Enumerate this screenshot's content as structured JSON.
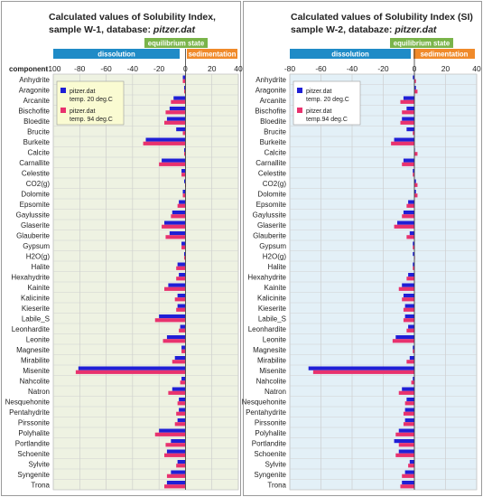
{
  "chart_data": [
    {
      "type": "bar",
      "title": "Calculated values of Solubility Index,",
      "title_line2_prefix": "sample W-1, database: ",
      "title_line2_italic": "pitzer.dat",
      "ylabel": "component",
      "xlim": [
        -100,
        40
      ],
      "xticks": [
        -100,
        -80,
        -60,
        -40,
        -20,
        0,
        20,
        40
      ],
      "plot_bg": "#eef2e2",
      "legend_placement": "top-left",
      "zone_labels": {
        "dissolution": "dissolution",
        "equilibrium": "equilibrium state",
        "sedimentation": "sedimentation"
      },
      "categories": [
        "Anhydrite",
        "Aragonite",
        "Arcanite",
        "Bischofite",
        "Bloedite",
        "Brucite",
        "Burkeite",
        "Calcite",
        "Carnallite",
        "Celestite",
        "CO2(g)",
        "Dolomite",
        "Epsomite",
        "Gaylussite",
        "Glaserite",
        "Glauberite",
        "Gypsum",
        "H2O(g)",
        "Halite",
        "Hexahydrite",
        "Kainite",
        "Kalicinite",
        "Kieserite",
        "Labile_S",
        "Leonhardite",
        "Leonite",
        "Magnesite",
        "Mirabilite",
        "Misenite",
        "Nahcolite",
        "Natron",
        "Nesquehonite",
        "Pentahydrite",
        "Pirssonite",
        "Polyhalite",
        "Portlandite",
        "Schoenite",
        "Sylvite",
        "Syngenite",
        "Trona"
      ],
      "series": [
        {
          "name": "pitzer.dat",
          "name_line2": "temp. 20 deg.C",
          "color": "#1f1fd6",
          "values": [
            -2,
            -1,
            -9,
            -12,
            -14,
            -7,
            -30,
            -1,
            -18,
            -3,
            -1,
            -2,
            -5,
            -10,
            -16,
            -12,
            -3,
            -1,
            -6,
            -5,
            -13,
            -6,
            -6,
            -20,
            -4,
            -14,
            -3,
            -8,
            -81,
            -3,
            -10,
            -5,
            -5,
            -6,
            -20,
            -11,
            -14,
            -6,
            -11,
            -14
          ]
        },
        {
          "name": "pitzer.dat",
          "name_line2": "temp. 94 deg.C",
          "color": "#e8326e",
          "values": [
            -2,
            -1,
            -11,
            -15,
            -16,
            -2,
            -32,
            -1,
            -20,
            -3,
            0,
            -2,
            -6,
            -11,
            -18,
            -15,
            -3,
            -1,
            -7,
            -7,
            -16,
            -8,
            -7,
            -23,
            -5,
            -17,
            -3,
            -10,
            -83,
            -4,
            -13,
            -6,
            -7,
            -8,
            -23,
            -15,
            -16,
            -7,
            -14,
            -16
          ]
        }
      ]
    },
    {
      "type": "bar",
      "title": "Calculated values of Solubility Index (SI)",
      "title_line2_prefix": "sample W-2, databaze: ",
      "title_line2_italic": "pitzer.dat",
      "ylabel": "",
      "xlim": [
        -80,
        40
      ],
      "xticks": [
        -80,
        -60,
        -40,
        -20,
        0,
        20,
        40
      ],
      "plot_bg": "#e3f0f7",
      "legend_placement": "top-left",
      "zone_labels": {
        "dissolution": "dissolution",
        "equilibrium": "equilibrium state",
        "sedimentation": "sedimentation"
      },
      "categories": [
        "Anhydrite",
        "Aragonite",
        "Arcanite",
        "Bischofite",
        "Bloedite",
        "Brucite",
        "Burkeite",
        "Calcite",
        "Carnallite",
        "Celestite",
        "CO2(g)",
        "Dolomite",
        "Epsomite",
        "Gaylussite",
        "Glaserite",
        "Glauberite",
        "Gypsum",
        "H2O(g)",
        "Halite",
        "Hexahydrite",
        "Kainite",
        "Kalicinite",
        "Kieserite",
        "Labile_S",
        "Leonhardite",
        "Leonite",
        "Magnesite",
        "Mirabilite",
        "Misenite",
        "Nahcolite",
        "Natron",
        "Nesquehonite",
        "Pentahydrite",
        "Pirssonite",
        "Polyhalite",
        "Portlandite",
        "Schoenite",
        "Sylvite",
        "Syngenite",
        "Trona"
      ],
      "series": [
        {
          "name": "pitzer.dat",
          "name_line2": "temp. 20 deg.C",
          "color": "#1f1fd6",
          "values": [
            -1,
            1,
            -7,
            -5,
            -8,
            -5,
            -13,
            0,
            -7,
            -1,
            1,
            1,
            -4,
            -7,
            -11,
            -3,
            -1,
            -1,
            -1,
            -4,
            -8,
            -7,
            -6,
            -6,
            -4,
            -12,
            -1,
            -3,
            -68,
            -1,
            -8,
            -5,
            -6,
            -6,
            -10,
            -13,
            -10,
            -3,
            -6,
            -8
          ]
        },
        {
          "name": "pitzer.dat",
          "name_line2": "temp.94 deg.C",
          "color": "#e8326e",
          "values": [
            1,
            2,
            -9,
            -8,
            -9,
            -1,
            -15,
            2,
            -8,
            -1,
            2,
            2,
            -5,
            -8,
            -13,
            -5,
            -1,
            0,
            -1,
            -5,
            -10,
            -8,
            -7,
            -7,
            -5,
            -14,
            -1,
            -5,
            -65,
            -2,
            -10,
            -6,
            -7,
            -7,
            -12,
            -10,
            -12,
            -4,
            -8,
            -9
          ]
        }
      ]
    }
  ],
  "colors": {
    "dissolution": "#1f8bc7",
    "equilibrium": "#7ab44a",
    "sedimentation": "#f08a2a",
    "legend_bg_left": "#fafbd2",
    "legend_bg_right": "#ffffff"
  }
}
